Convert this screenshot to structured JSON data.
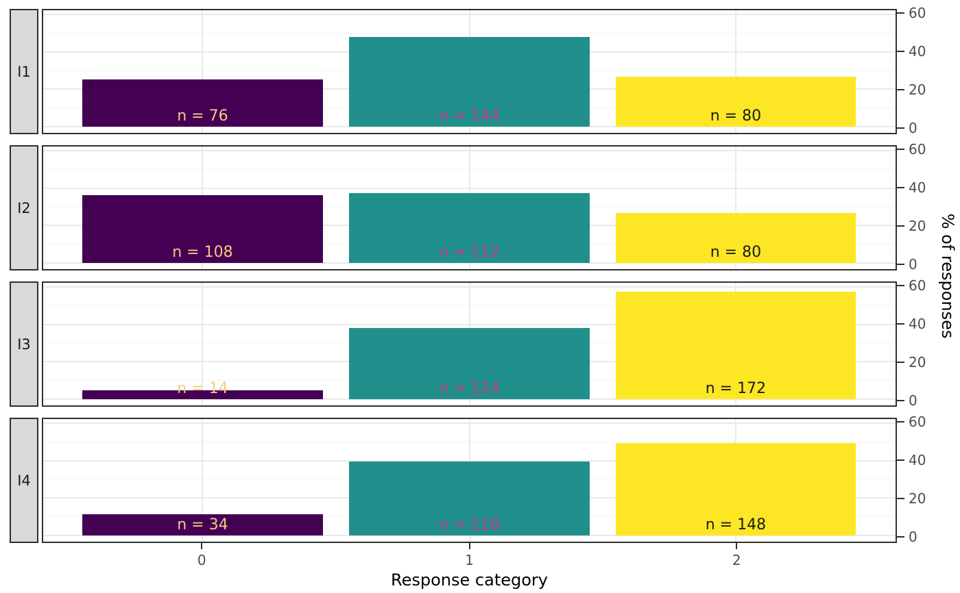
{
  "chart_data": {
    "type": "bar",
    "title": "",
    "xlabel": "Response category",
    "ylabel": "% of responses",
    "categories": [
      "0",
      "1",
      "2"
    ],
    "ylim": [
      0,
      60
    ],
    "y_ticks": [
      0,
      20,
      40,
      60
    ],
    "y_minor_gridlines": [
      10,
      30,
      50
    ],
    "grid": "horizontal major+minor, vertical major at category centers",
    "legend_position": "none",
    "facets": [
      {
        "label": "I1",
        "bars": [
          {
            "category": "0",
            "n": 76,
            "pct": 25.33,
            "n_label": "n = 76"
          },
          {
            "category": "1",
            "n": 144,
            "pct": 48.0,
            "n_label": "n = 144"
          },
          {
            "category": "2",
            "n": 80,
            "pct": 26.67,
            "n_label": "n = 80"
          }
        ]
      },
      {
        "label": "I2",
        "bars": [
          {
            "category": "0",
            "n": 108,
            "pct": 36.0,
            "n_label": "n = 108"
          },
          {
            "category": "1",
            "n": 112,
            "pct": 37.33,
            "n_label": "n = 112"
          },
          {
            "category": "2",
            "n": 80,
            "pct": 26.67,
            "n_label": "n = 80"
          }
        ]
      },
      {
        "label": "I3",
        "bars": [
          {
            "category": "0",
            "n": 14,
            "pct": 4.67,
            "n_label": "n = 14"
          },
          {
            "category": "1",
            "n": 114,
            "pct": 38.0,
            "n_label": "n = 114"
          },
          {
            "category": "2",
            "n": 172,
            "pct": 57.33,
            "n_label": "n = 172"
          }
        ]
      },
      {
        "label": "I4",
        "bars": [
          {
            "category": "0",
            "n": 34,
            "pct": 11.33,
            "n_label": "n = 34"
          },
          {
            "category": "1",
            "n": 118,
            "pct": 39.33,
            "n_label": "n = 118"
          },
          {
            "category": "2",
            "n": 148,
            "pct": 49.33,
            "n_label": "n = 148"
          }
        ]
      }
    ],
    "colors": {
      "bar_fills": [
        "#440154",
        "#21908C",
        "#FDE725"
      ],
      "bar_label_colors": [
        "#F9C783",
        "#C23A8A",
        "#1A1A1A"
      ],
      "panel_border": "#2F2F2F",
      "strip_fill": "#D9D9D9",
      "axis_text": "#4D4D4D",
      "gridline_major": "#E9E9E9",
      "gridline_minor": "#F3F3F3"
    }
  }
}
